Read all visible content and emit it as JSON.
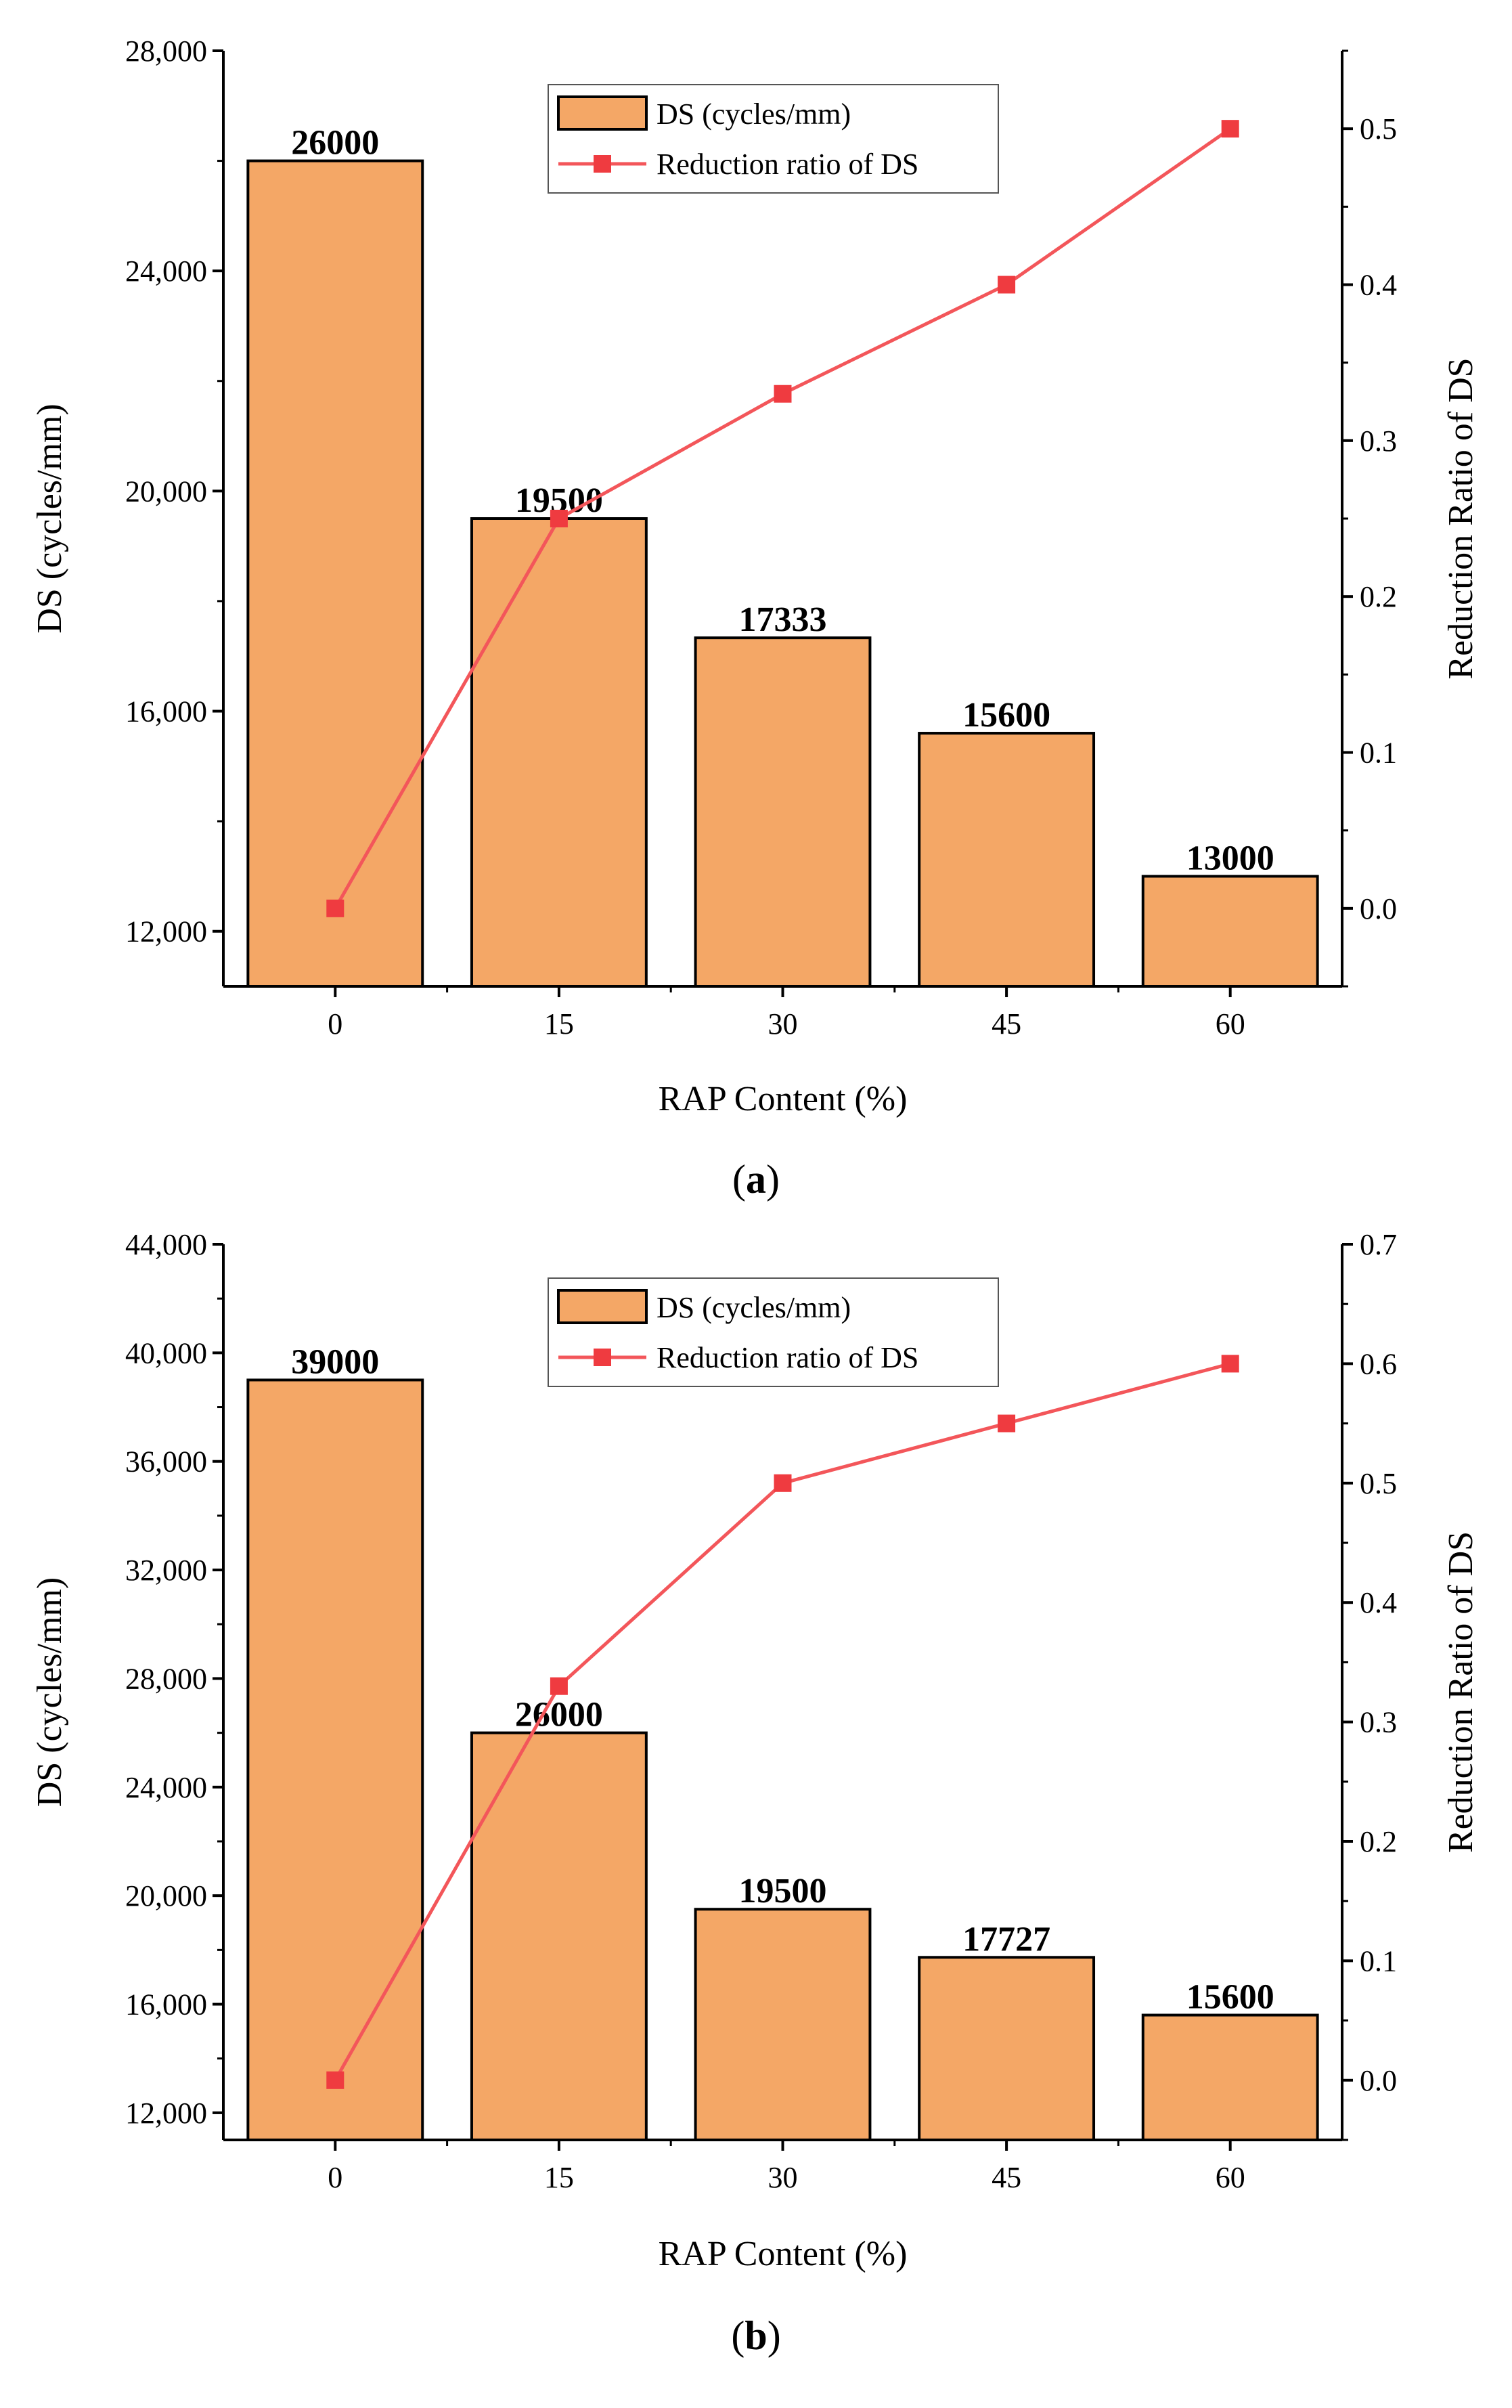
{
  "colors": {
    "bar_fill": "#f4a766",
    "bar_stroke": "#000000",
    "line": "#f3565a",
    "marker": "#ef3b40"
  },
  "chart_data": [
    {
      "type": "bar",
      "panel_label": "a",
      "categories": [
        "0",
        "15",
        "30",
        "45",
        "60"
      ],
      "values": [
        26000,
        19500,
        17333,
        15600,
        13000
      ],
      "data_labels": [
        "26000",
        "19500",
        "17333",
        "15600",
        "13000"
      ],
      "line_series": {
        "name": "Reduction ratio of DS",
        "values": [
          0.0,
          0.25,
          0.33,
          0.4,
          0.5
        ]
      },
      "bar_series_name": "DS (cycles/mm)",
      "xlabel": "RAP Content (%)",
      "ylabel": "DS (cycles/mm)",
      "y2label": "Reduction Ratio of DS",
      "ylim": [
        11000,
        28000
      ],
      "yticks": [
        12000,
        16000,
        20000,
        24000,
        28000
      ],
      "ytick_labels": [
        "12,000",
        "16,000",
        "20,000",
        "24,000",
        "28,000"
      ],
      "y2lim": [
        -0.05,
        0.55
      ],
      "y2ticks": [
        0.0,
        0.1,
        0.2,
        0.3,
        0.4,
        0.5
      ],
      "y2tick_labels": [
        "0.0",
        "0.1",
        "0.2",
        "0.3",
        "0.4",
        "0.5"
      ],
      "legend_position": "top-center"
    },
    {
      "type": "bar",
      "panel_label": "b",
      "categories": [
        "0",
        "15",
        "30",
        "45",
        "60"
      ],
      "values": [
        39000,
        26000,
        19500,
        17727,
        15600
      ],
      "data_labels": [
        "39000",
        "26000",
        "19500",
        "17727",
        "15600"
      ],
      "line_series": {
        "name": "Reduction ratio of DS",
        "values": [
          0.0,
          0.33,
          0.5,
          0.55,
          0.6
        ]
      },
      "bar_series_name": "DS (cycles/mm)",
      "xlabel": "RAP Content (%)",
      "ylabel": "DS (cycles/mm)",
      "y2label": "Reduction Ratio of DS",
      "ylim": [
        11000,
        44000
      ],
      "yticks": [
        12000,
        16000,
        20000,
        24000,
        28000,
        32000,
        36000,
        40000,
        44000
      ],
      "ytick_labels": [
        "12,000",
        "16,000",
        "20,000",
        "24,000",
        "28,000",
        "32,000",
        "36,000",
        "40,000",
        "44,000"
      ],
      "y2lim": [
        -0.05,
        0.7
      ],
      "y2ticks": [
        0.0,
        0.1,
        0.2,
        0.3,
        0.4,
        0.5,
        0.6,
        0.7
      ],
      "y2tick_labels": [
        "0.0",
        "0.1",
        "0.2",
        "0.3",
        "0.4",
        "0.5",
        "0.6",
        "0.7"
      ],
      "legend_position": "top-center"
    }
  ]
}
